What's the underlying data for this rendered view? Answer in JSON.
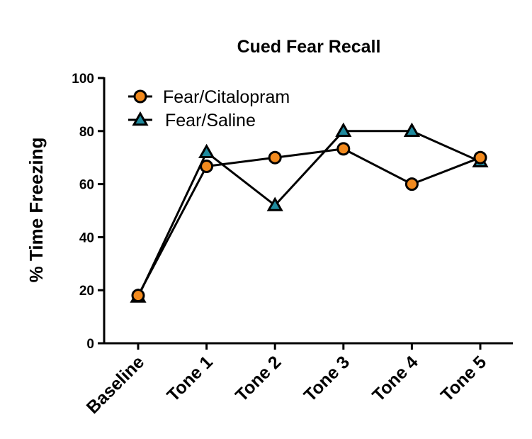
{
  "chart_data": {
    "type": "line",
    "title": "Cued Fear Recall",
    "xlabel": "",
    "ylabel": "% Time Freezing",
    "categories": [
      "Baseline",
      "Tone 1",
      "Tone 2",
      "Tone 3",
      "Tone 4",
      "Tone 5"
    ],
    "ylim": [
      0,
      100
    ],
    "yticks": [
      0,
      20,
      40,
      60,
      80,
      100
    ],
    "grid": false,
    "legend_position": "top-left",
    "series": [
      {
        "name": "Fear/Citalopram",
        "marker": "circle",
        "color": "#f28a1e",
        "values": [
          18,
          66.7,
          70,
          73.3,
          60,
          70
        ]
      },
      {
        "name": "Fear/Saline",
        "marker": "triangle",
        "color": "#1f8a9e",
        "values": [
          17.5,
          72,
          52,
          80,
          80,
          68.5
        ]
      }
    ]
  }
}
